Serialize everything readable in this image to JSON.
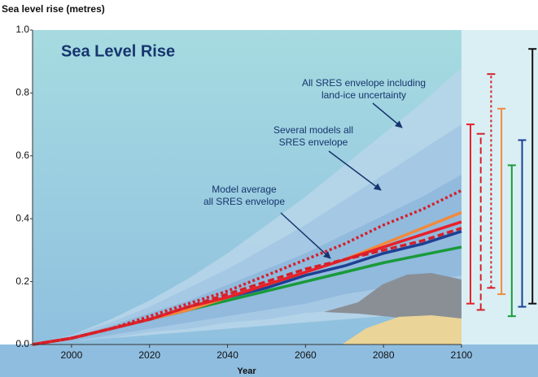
{
  "chart_data": {
    "type": "line",
    "title": "Sea Level Rise",
    "y_label": "Sea level rise (metres)",
    "x_label": "Year",
    "x": [
      1990,
      2000,
      2010,
      2020,
      2030,
      2040,
      2050,
      2060,
      2070,
      2080,
      2090,
      2100
    ],
    "xlim": [
      1990,
      2100
    ],
    "xticks": [
      2000,
      2020,
      2040,
      2060,
      2080,
      2100
    ],
    "ylim": [
      0,
      1
    ],
    "yticks": [
      {
        "value": 0,
        "label": "0.0"
      },
      0.2,
      0.4,
      0.6,
      0.8,
      {
        "value": 1,
        "label": "1.0"
      }
    ],
    "envelopes": [
      {
        "color": "#b9d6ea",
        "upper": [
          0,
          0.03,
          0.08,
          0.14,
          0.21,
          0.29,
          0.38,
          0.47,
          0.57,
          0.67,
          0.77,
          0.88
        ],
        "lower": [
          0,
          0.01,
          0.02,
          0.03,
          0.04,
          0.05,
          0.06,
          0.07,
          0.08,
          0.09,
          0.1,
          0.11
        ]
      },
      {
        "color": "#a2c6e3",
        "upper": [
          0,
          0.03,
          0.07,
          0.12,
          0.18,
          0.24,
          0.31,
          0.38,
          0.46,
          0.54,
          0.62,
          0.7
        ],
        "lower": [
          0,
          0.01,
          0.02,
          0.04,
          0.05,
          0.07,
          0.08,
          0.1,
          0.11,
          0.12,
          0.13,
          0.13
        ]
      },
      {
        "color": "#8db7dc",
        "upper": [
          0,
          0.02,
          0.06,
          0.1,
          0.14,
          0.19,
          0.24,
          0.29,
          0.35,
          0.41,
          0.47,
          0.54
        ],
        "lower": [
          0,
          0.01,
          0.03,
          0.05,
          0.07,
          0.09,
          0.11,
          0.13,
          0.16,
          0.18,
          0.2,
          0.22
        ]
      }
    ],
    "series": [
      {
        "color": "#1a9a3a",
        "dash": "solid",
        "values": [
          0,
          0.02,
          0.05,
          0.08,
          0.11,
          0.14,
          0.17,
          0.2,
          0.23,
          0.26,
          0.285,
          0.31
        ]
      },
      {
        "color": "#1d3f93",
        "dash": "solid",
        "values": [
          0,
          0.02,
          0.05,
          0.08,
          0.11,
          0.15,
          0.18,
          0.22,
          0.25,
          0.29,
          0.32,
          0.36
        ]
      },
      {
        "color": "#f28a3c",
        "dash": "solid",
        "values": [
          0,
          0.02,
          0.05,
          0.08,
          0.11,
          0.15,
          0.19,
          0.23,
          0.27,
          0.32,
          0.37,
          0.42
        ]
      },
      {
        "color": "#e8202a",
        "dash": "solid",
        "values": [
          0,
          0.02,
          0.05,
          0.08,
          0.12,
          0.15,
          0.19,
          0.23,
          0.27,
          0.31,
          0.35,
          0.39
        ]
      },
      {
        "color": "#d4202a",
        "dash": "dashed",
        "values": [
          0,
          0.02,
          0.05,
          0.08,
          0.12,
          0.16,
          0.2,
          0.24,
          0.27,
          0.3,
          0.33,
          0.37
        ]
      },
      {
        "color": "#d4202a",
        "dash": "dotted",
        "values": [
          0,
          0.02,
          0.05,
          0.09,
          0.13,
          0.17,
          0.22,
          0.27,
          0.32,
          0.38,
          0.43,
          0.49
        ]
      }
    ],
    "range_bars": [
      {
        "color": "#e8202a",
        "dash": "solid",
        "low": 0.13,
        "high": 0.7
      },
      {
        "color": "#d4202a",
        "dash": "dashed",
        "low": 0.11,
        "high": 0.67
      },
      {
        "color": "#d4202a",
        "dash": "dotted",
        "low": 0.18,
        "high": 0.86
      },
      {
        "color": "#f28a3c",
        "dash": "solid",
        "low": 0.16,
        "high": 0.75
      },
      {
        "color": "#1a9a3a",
        "dash": "solid",
        "low": 0.09,
        "high": 0.57
      },
      {
        "color": "#1d3f93",
        "dash": "solid",
        "low": 0.12,
        "high": 0.65
      },
      {
        "color": "#111111",
        "dash": "solid",
        "low": 0.13,
        "high": 0.94
      }
    ],
    "annotations": [
      [
        "All SRES envelope including",
        "land-ice uncertainty"
      ],
      [
        "Several models all",
        "SRES envelope"
      ],
      [
        "Model average",
        "all SRES envelope"
      ]
    ]
  }
}
